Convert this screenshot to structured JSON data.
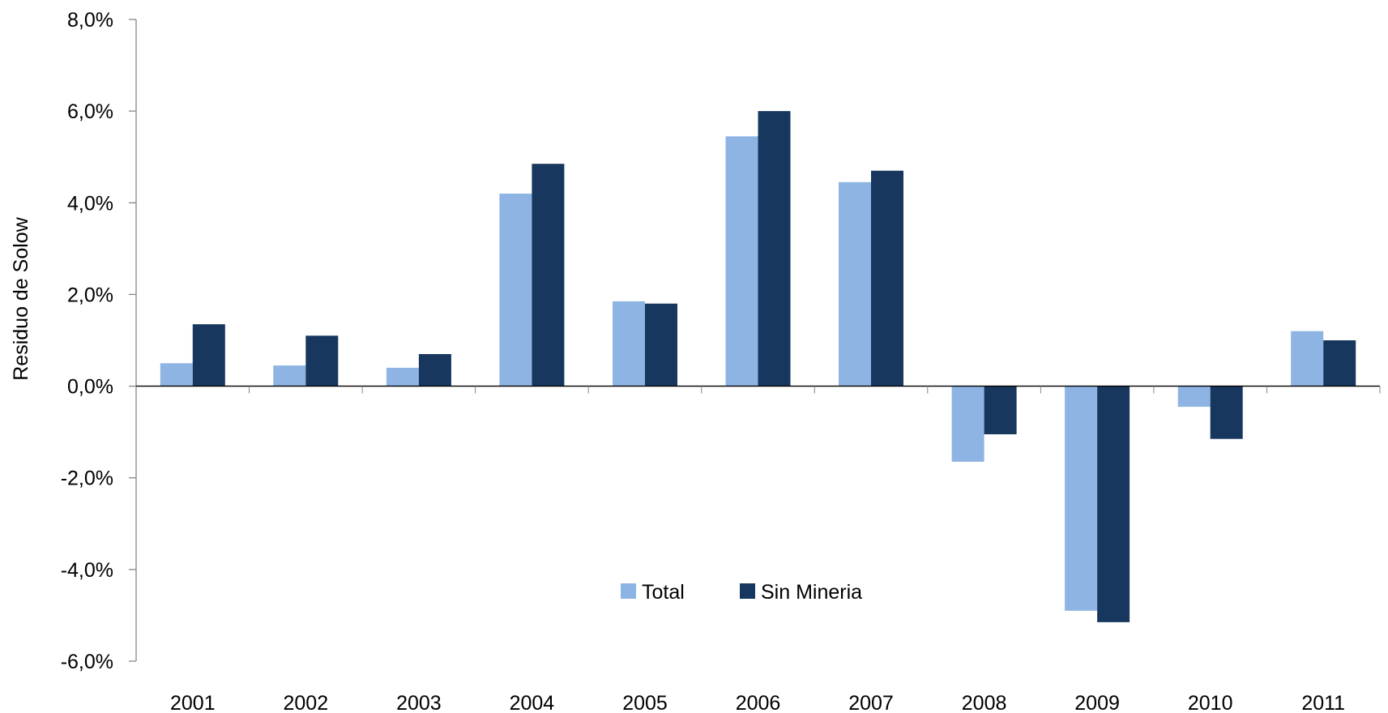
{
  "chart_data": {
    "type": "bar",
    "title": "",
    "xlabel": "",
    "ylabel": "Residuo de Solow",
    "categories": [
      "2001",
      "2002",
      "2003",
      "2004",
      "2005",
      "2006",
      "2007",
      "2008",
      "2009",
      "2010",
      "2011"
    ],
    "series": [
      {
        "name": "Total",
        "color": "#8EB4E3",
        "values": [
          0.5,
          0.45,
          0.4,
          4.2,
          1.85,
          5.45,
          4.45,
          -1.65,
          -4.9,
          -0.45,
          1.2
        ]
      },
      {
        "name": "Sin Mineria",
        "color": "#17375E",
        "values": [
          1.35,
          1.1,
          0.7,
          4.85,
          1.8,
          6.0,
          4.7,
          -1.05,
          -5.15,
          -1.15,
          1.0
        ]
      }
    ],
    "ylim": [
      -6,
      8
    ],
    "yticks": [
      8,
      6,
      4,
      2,
      0,
      -2,
      -4,
      -6
    ],
    "ytick_labels": [
      "8,0%",
      "6,0%",
      "4,0%",
      "2,0%",
      "0,0%",
      "-2,0%",
      "-4,0%",
      "-6,0%"
    ],
    "grid": false,
    "legend": {
      "position": "bottom-center",
      "entries": [
        "Total",
        "Sin Mineria"
      ]
    }
  }
}
